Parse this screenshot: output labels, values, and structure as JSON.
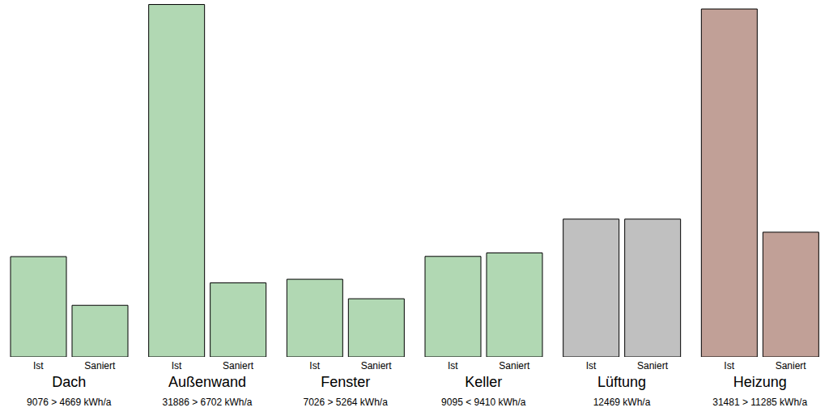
{
  "chart_data": {
    "type": "bar",
    "categories": [
      "Dach",
      "Außenwand",
      "Fenster",
      "Keller",
      "Lüftung",
      "Heizung"
    ],
    "series": [
      {
        "name": "Ist",
        "values": [
          9076,
          31886,
          7026,
          9095,
          12469,
          31481
        ]
      },
      {
        "name": "Saniert",
        "values": [
          4669,
          6702,
          5264,
          9410,
          12469,
          11285
        ]
      }
    ],
    "colors": [
      "#b1d8b3",
      "#b1d8b3",
      "#b1d8b3",
      "#b1d8b3",
      "#c0c0c0",
      "#c1a097"
    ],
    "annotations": [
      "9076 > 4669 kWh/a",
      "31886 > 6702 kWh/a",
      "7026 > 5264 kWh/a",
      "9095 < 9410 kWh/a",
      "12469 kWh/a",
      "31481 > 11285 kWh/a"
    ],
    "ylim": [
      0,
      32000
    ],
    "tick_labels": false,
    "grid": false
  }
}
